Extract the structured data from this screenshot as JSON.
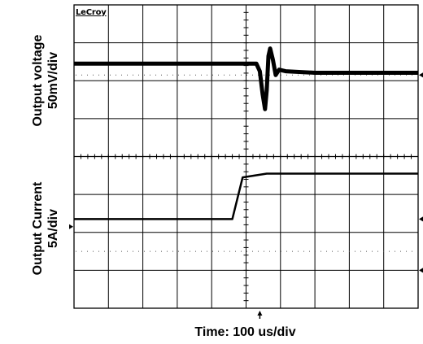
{
  "brand": "LeCroy",
  "xlabel": "Time: 100 us/div",
  "channels": [
    {
      "label_line1": "Output voltage",
      "label_line2": "50mV/div"
    },
    {
      "label_line1": "Output Current",
      "label_line2": "5A/div"
    }
  ],
  "chart_data": {
    "type": "line",
    "title": "",
    "xlabel": "Time: 100 us/div",
    "grid": true,
    "divisions": {
      "x": 10,
      "y": 8
    },
    "x_unit": "us",
    "x_per_div_us": 100,
    "xlim_us": [
      0,
      1000
    ],
    "trigger_time_us": 540,
    "series": [
      {
        "name": "Output voltage",
        "scale": "50mV/div",
        "points_us_mV": [
          [
            0,
            0
          ],
          [
            530,
            0
          ],
          [
            540,
            -10
          ],
          [
            548,
            -40
          ],
          [
            555,
            -60
          ],
          [
            560,
            -35
          ],
          [
            565,
            10
          ],
          [
            570,
            20
          ],
          [
            578,
            5
          ],
          [
            586,
            -15
          ],
          [
            596,
            -8
          ],
          [
            615,
            -10
          ],
          [
            700,
            -12
          ],
          [
            1000,
            -12
          ]
        ]
      },
      {
        "name": "Output Current",
        "scale": "5A/div",
        "points_us_A": [
          [
            0,
            0
          ],
          [
            460,
            0
          ],
          [
            490,
            5.5
          ],
          [
            560,
            6
          ],
          [
            1000,
            6
          ]
        ]
      }
    ]
  }
}
